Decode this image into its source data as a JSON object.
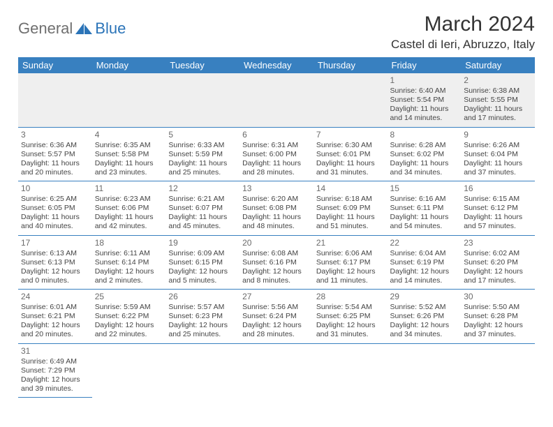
{
  "brand": {
    "general": "General",
    "blue": "Blue"
  },
  "title": {
    "monthYear": "March 2024",
    "location": "Castel di Ieri, Abruzzo, Italy"
  },
  "colors": {
    "headerBg": "#3880c0",
    "headerText": "#ffffff",
    "border": "#3880c0",
    "greyRow": "#efefef",
    "logoBlue": "#2b74b8",
    "logoGrey": "#6f6f6f"
  },
  "weekdays": [
    "Sunday",
    "Monday",
    "Tuesday",
    "Wednesday",
    "Thursday",
    "Friday",
    "Saturday"
  ],
  "weeks": [
    [
      null,
      null,
      null,
      null,
      null,
      {
        "n": "1",
        "sr": "Sunrise: 6:40 AM",
        "ss": "Sunset: 5:54 PM",
        "dl1": "Daylight: 11 hours",
        "dl2": "and 14 minutes."
      },
      {
        "n": "2",
        "sr": "Sunrise: 6:38 AM",
        "ss": "Sunset: 5:55 PM",
        "dl1": "Daylight: 11 hours",
        "dl2": "and 17 minutes."
      }
    ],
    [
      {
        "n": "3",
        "sr": "Sunrise: 6:36 AM",
        "ss": "Sunset: 5:57 PM",
        "dl1": "Daylight: 11 hours",
        "dl2": "and 20 minutes."
      },
      {
        "n": "4",
        "sr": "Sunrise: 6:35 AM",
        "ss": "Sunset: 5:58 PM",
        "dl1": "Daylight: 11 hours",
        "dl2": "and 23 minutes."
      },
      {
        "n": "5",
        "sr": "Sunrise: 6:33 AM",
        "ss": "Sunset: 5:59 PM",
        "dl1": "Daylight: 11 hours",
        "dl2": "and 25 minutes."
      },
      {
        "n": "6",
        "sr": "Sunrise: 6:31 AM",
        "ss": "Sunset: 6:00 PM",
        "dl1": "Daylight: 11 hours",
        "dl2": "and 28 minutes."
      },
      {
        "n": "7",
        "sr": "Sunrise: 6:30 AM",
        "ss": "Sunset: 6:01 PM",
        "dl1": "Daylight: 11 hours",
        "dl2": "and 31 minutes."
      },
      {
        "n": "8",
        "sr": "Sunrise: 6:28 AM",
        "ss": "Sunset: 6:02 PM",
        "dl1": "Daylight: 11 hours",
        "dl2": "and 34 minutes."
      },
      {
        "n": "9",
        "sr": "Sunrise: 6:26 AM",
        "ss": "Sunset: 6:04 PM",
        "dl1": "Daylight: 11 hours",
        "dl2": "and 37 minutes."
      }
    ],
    [
      {
        "n": "10",
        "sr": "Sunrise: 6:25 AM",
        "ss": "Sunset: 6:05 PM",
        "dl1": "Daylight: 11 hours",
        "dl2": "and 40 minutes."
      },
      {
        "n": "11",
        "sr": "Sunrise: 6:23 AM",
        "ss": "Sunset: 6:06 PM",
        "dl1": "Daylight: 11 hours",
        "dl2": "and 42 minutes."
      },
      {
        "n": "12",
        "sr": "Sunrise: 6:21 AM",
        "ss": "Sunset: 6:07 PM",
        "dl1": "Daylight: 11 hours",
        "dl2": "and 45 minutes."
      },
      {
        "n": "13",
        "sr": "Sunrise: 6:20 AM",
        "ss": "Sunset: 6:08 PM",
        "dl1": "Daylight: 11 hours",
        "dl2": "and 48 minutes."
      },
      {
        "n": "14",
        "sr": "Sunrise: 6:18 AM",
        "ss": "Sunset: 6:09 PM",
        "dl1": "Daylight: 11 hours",
        "dl2": "and 51 minutes."
      },
      {
        "n": "15",
        "sr": "Sunrise: 6:16 AM",
        "ss": "Sunset: 6:11 PM",
        "dl1": "Daylight: 11 hours",
        "dl2": "and 54 minutes."
      },
      {
        "n": "16",
        "sr": "Sunrise: 6:15 AM",
        "ss": "Sunset: 6:12 PM",
        "dl1": "Daylight: 11 hours",
        "dl2": "and 57 minutes."
      }
    ],
    [
      {
        "n": "17",
        "sr": "Sunrise: 6:13 AM",
        "ss": "Sunset: 6:13 PM",
        "dl1": "Daylight: 12 hours",
        "dl2": "and 0 minutes."
      },
      {
        "n": "18",
        "sr": "Sunrise: 6:11 AM",
        "ss": "Sunset: 6:14 PM",
        "dl1": "Daylight: 12 hours",
        "dl2": "and 2 minutes."
      },
      {
        "n": "19",
        "sr": "Sunrise: 6:09 AM",
        "ss": "Sunset: 6:15 PM",
        "dl1": "Daylight: 12 hours",
        "dl2": "and 5 minutes."
      },
      {
        "n": "20",
        "sr": "Sunrise: 6:08 AM",
        "ss": "Sunset: 6:16 PM",
        "dl1": "Daylight: 12 hours",
        "dl2": "and 8 minutes."
      },
      {
        "n": "21",
        "sr": "Sunrise: 6:06 AM",
        "ss": "Sunset: 6:17 PM",
        "dl1": "Daylight: 12 hours",
        "dl2": "and 11 minutes."
      },
      {
        "n": "22",
        "sr": "Sunrise: 6:04 AM",
        "ss": "Sunset: 6:19 PM",
        "dl1": "Daylight: 12 hours",
        "dl2": "and 14 minutes."
      },
      {
        "n": "23",
        "sr": "Sunrise: 6:02 AM",
        "ss": "Sunset: 6:20 PM",
        "dl1": "Daylight: 12 hours",
        "dl2": "and 17 minutes."
      }
    ],
    [
      {
        "n": "24",
        "sr": "Sunrise: 6:01 AM",
        "ss": "Sunset: 6:21 PM",
        "dl1": "Daylight: 12 hours",
        "dl2": "and 20 minutes."
      },
      {
        "n": "25",
        "sr": "Sunrise: 5:59 AM",
        "ss": "Sunset: 6:22 PM",
        "dl1": "Daylight: 12 hours",
        "dl2": "and 22 minutes."
      },
      {
        "n": "26",
        "sr": "Sunrise: 5:57 AM",
        "ss": "Sunset: 6:23 PM",
        "dl1": "Daylight: 12 hours",
        "dl2": "and 25 minutes."
      },
      {
        "n": "27",
        "sr": "Sunrise: 5:56 AM",
        "ss": "Sunset: 6:24 PM",
        "dl1": "Daylight: 12 hours",
        "dl2": "and 28 minutes."
      },
      {
        "n": "28",
        "sr": "Sunrise: 5:54 AM",
        "ss": "Sunset: 6:25 PM",
        "dl1": "Daylight: 12 hours",
        "dl2": "and 31 minutes."
      },
      {
        "n": "29",
        "sr": "Sunrise: 5:52 AM",
        "ss": "Sunset: 6:26 PM",
        "dl1": "Daylight: 12 hours",
        "dl2": "and 34 minutes."
      },
      {
        "n": "30",
        "sr": "Sunrise: 5:50 AM",
        "ss": "Sunset: 6:28 PM",
        "dl1": "Daylight: 12 hours",
        "dl2": "and 37 minutes."
      }
    ],
    [
      {
        "n": "31",
        "sr": "Sunrise: 6:49 AM",
        "ss": "Sunset: 7:29 PM",
        "dl1": "Daylight: 12 hours",
        "dl2": "and 39 minutes."
      },
      null,
      null,
      null,
      null,
      null,
      null
    ]
  ]
}
